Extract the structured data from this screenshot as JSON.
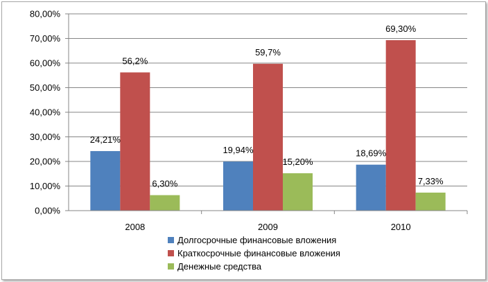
{
  "chart_data": {
    "type": "bar",
    "categories": [
      "2008",
      "2009",
      "2010"
    ],
    "ylim": [
      0,
      80
    ],
    "y_ticks": [
      "0,00%",
      "10,00%",
      "20,00%",
      "30,00%",
      "40,00%",
      "50,00%",
      "60,00%",
      "70,00%",
      "80,00%"
    ],
    "grid": true,
    "legend_position": "bottom",
    "series": [
      {
        "name": "Долгосрочные финансовые вложения",
        "color": "#4f81bd",
        "values": [
          24.21,
          19.94,
          18.69
        ],
        "labels": [
          "24,21%",
          "19,94%",
          "18,69%"
        ]
      },
      {
        "name": "Краткосрочные финансовые вложения",
        "color": "#c0504d",
        "values": [
          56.2,
          59.7,
          69.3
        ],
        "labels": [
          "56,2%",
          "59,7%",
          "69,30%"
        ]
      },
      {
        "name": "Денежные средства",
        "color": "#9bbb59",
        "values": [
          6.3,
          15.2,
          7.33
        ],
        "labels": [
          "6,30%",
          "15,20%",
          "7,33%"
        ]
      }
    ]
  }
}
